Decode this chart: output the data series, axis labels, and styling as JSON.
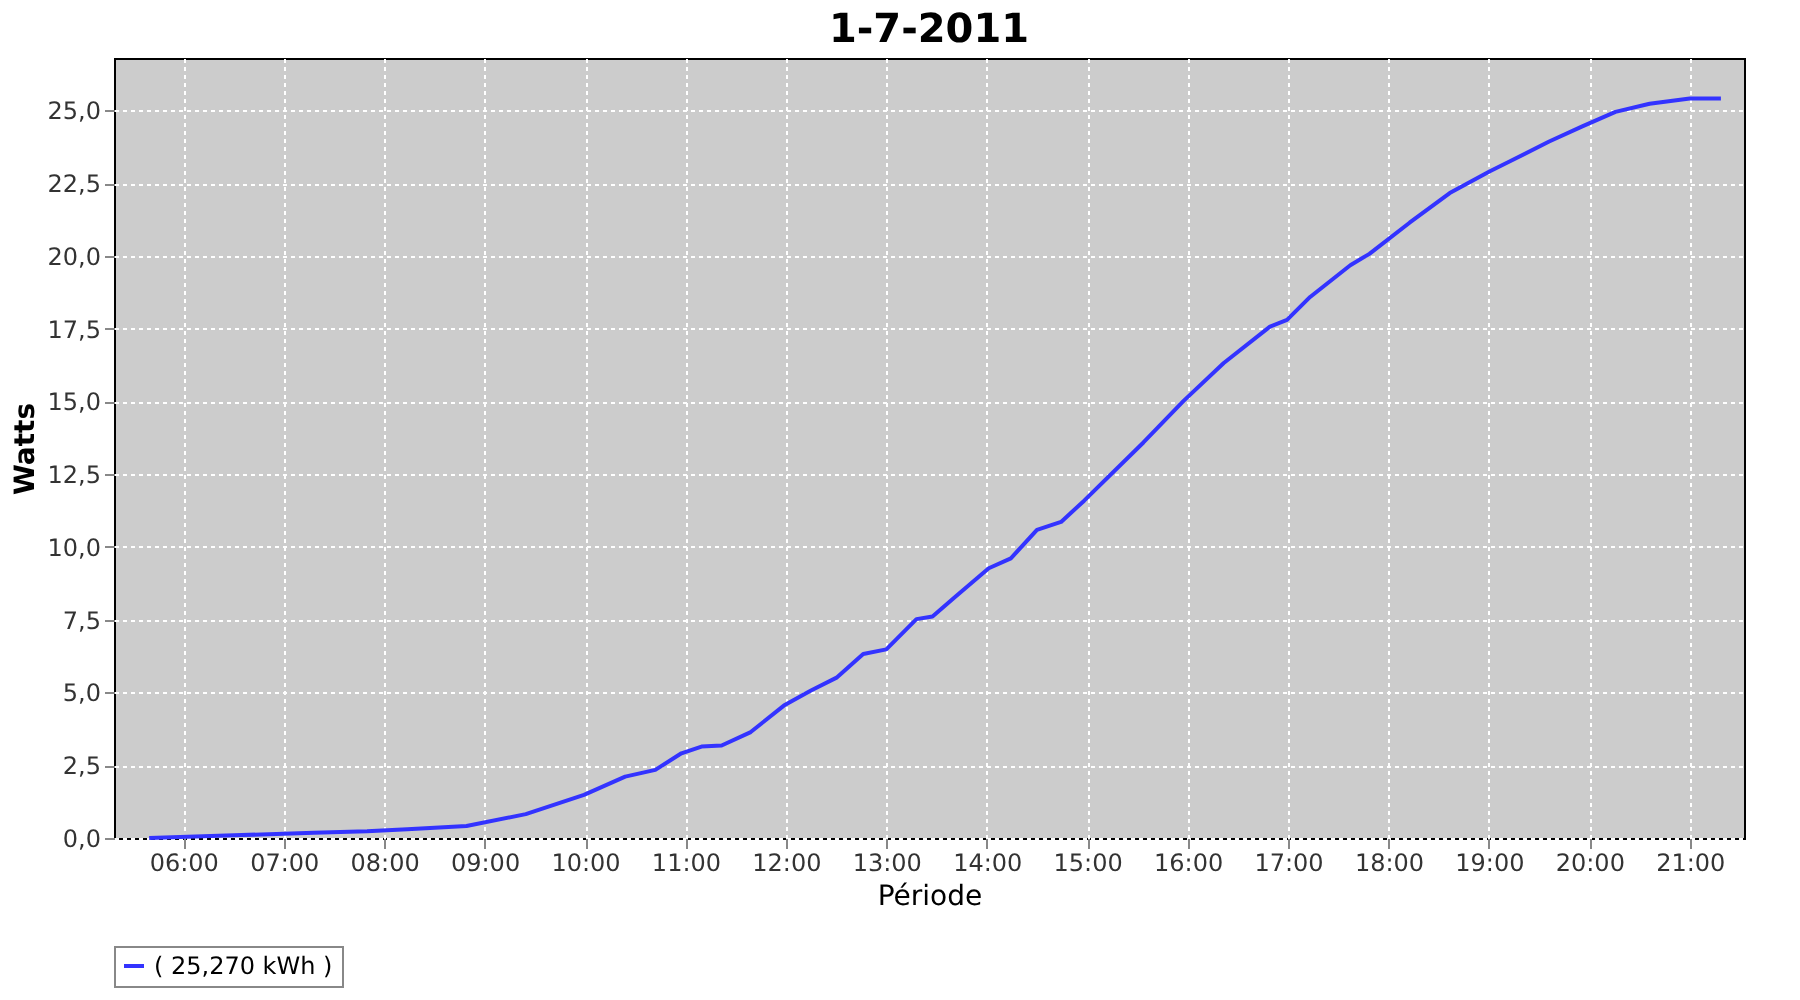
{
  "chart_data": {
    "type": "line",
    "title": "1-7-2011",
    "xlabel": "Période",
    "ylabel": "Watts",
    "xlim": [
      5.31,
      21.54
    ],
    "xticks": [
      {
        "value": 6,
        "label": "06:00"
      },
      {
        "value": 7,
        "label": "07:00"
      },
      {
        "value": 8,
        "label": "08:00"
      },
      {
        "value": 9,
        "label": "09:00"
      },
      {
        "value": 10,
        "label": "10:00"
      },
      {
        "value": 11,
        "label": "11:00"
      },
      {
        "value": 12,
        "label": "12:00"
      },
      {
        "value": 13,
        "label": "13:00"
      },
      {
        "value": 14,
        "label": "14:00"
      },
      {
        "value": 15,
        "label": "15:00"
      },
      {
        "value": 16,
        "label": "16:00"
      },
      {
        "value": 17,
        "label": "17:00"
      },
      {
        "value": 18,
        "label": "18:00"
      },
      {
        "value": 19,
        "label": "19:00"
      },
      {
        "value": 20,
        "label": "20:00"
      },
      {
        "value": 21,
        "label": "21:00"
      }
    ],
    "ylim": [
      0,
      26.8
    ],
    "yticks": [
      {
        "value": 0,
        "label": "0,0"
      },
      {
        "value": 2.5,
        "label": "2,5"
      },
      {
        "value": 5,
        "label": "5,0"
      },
      {
        "value": 7.5,
        "label": "7,5"
      },
      {
        "value": 10,
        "label": "10,0"
      },
      {
        "value": 12.5,
        "label": "12,5"
      },
      {
        "value": 15,
        "label": "15,0"
      },
      {
        "value": 17.5,
        "label": "17,5"
      },
      {
        "value": 20,
        "label": "20,0"
      },
      {
        "value": 22.5,
        "label": "22,5"
      },
      {
        "value": 25,
        "label": "25,0"
      }
    ],
    "grid": true,
    "legend": "bottom",
    "marker": "none",
    "line_style": "solid",
    "series": [
      {
        "name": "( 25,270 kWh )",
        "color": "#3333ff",
        "x": [
          5.66,
          6.58,
          7.3,
          7.83,
          8.23,
          8.82,
          9.41,
          9.99,
          10.4,
          10.7,
          10.96,
          11.16,
          11.36,
          11.65,
          11.98,
          12.25,
          12.51,
          12.77,
          13.0,
          13.3,
          13.46,
          13.69,
          14.02,
          14.24,
          14.5,
          14.74,
          14.97,
          15.56,
          15.96,
          16.36,
          16.82,
          16.99,
          17.22,
          17.62,
          17.81,
          18.21,
          18.61,
          19.01,
          19.21,
          19.6,
          19.93,
          20.26,
          20.6,
          21.0,
          21.31
        ],
        "values": [
          0.0,
          0.1,
          0.18,
          0.23,
          0.3,
          0.41,
          0.82,
          1.48,
          2.11,
          2.34,
          2.91,
          3.14,
          3.18,
          3.64,
          4.55,
          5.07,
          5.52,
          6.32,
          6.48,
          7.52,
          7.61,
          8.3,
          9.27,
          9.61,
          10.59,
          10.86,
          11.59,
          13.59,
          15.02,
          16.32,
          17.57,
          17.8,
          18.59,
          19.68,
          20.07,
          21.14,
          22.16,
          22.91,
          23.25,
          23.93,
          24.45,
          24.95,
          25.23,
          25.41,
          25.41
        ]
      }
    ]
  }
}
